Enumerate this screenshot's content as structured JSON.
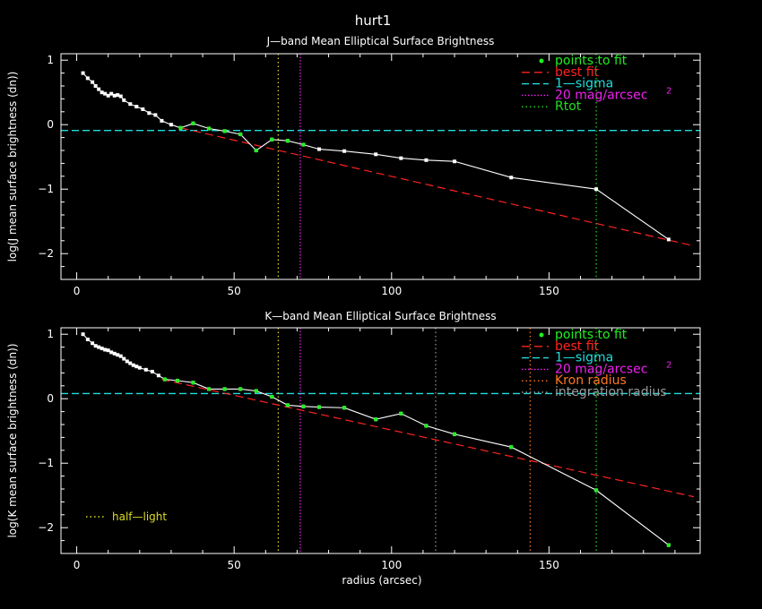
{
  "figure": {
    "title": "hurt1",
    "xlabel": "radius (arcsec)"
  },
  "colors": {
    "background": "#000000",
    "axes": "#ffffff",
    "data_line": "#ffffff",
    "fit_points": "#22ee22",
    "best_fit": "#ff2222",
    "one_sigma": "#22dddd",
    "mag20": "#ee22ee",
    "rtot": "#22dd22",
    "kron": "#ff7722",
    "integration": "#999999",
    "half_light": "#dddd22"
  },
  "chart_data": [
    {
      "type": "line",
      "panel": "J",
      "title": "J—band Mean Elliptical Surface Brightness",
      "xlabel": "",
      "ylabel": "log(J mean surface brightness (dn))",
      "xlim": [
        -5,
        198
      ],
      "ylim": [
        -2.4,
        1.1
      ],
      "xticks": [
        0,
        50,
        100,
        150
      ],
      "yticks": [
        1,
        0,
        -1,
        -2
      ],
      "profile": {
        "x": [
          2,
          3.5,
          5,
          6,
          7,
          8,
          9,
          10,
          11,
          12,
          13,
          14,
          15,
          17,
          19,
          21,
          23,
          25,
          27,
          30,
          33,
          37,
          42,
          47,
          52,
          57,
          62,
          67,
          72,
          77,
          85,
          95,
          103,
          111,
          120,
          138,
          165,
          188
        ],
        "y": [
          0.8,
          0.72,
          0.66,
          0.6,
          0.55,
          0.5,
          0.48,
          0.45,
          0.48,
          0.45,
          0.46,
          0.44,
          0.38,
          0.32,
          0.28,
          0.24,
          0.18,
          0.15,
          0.06,
          0.0,
          -0.05,
          0.02,
          -0.06,
          -0.1,
          -0.15,
          -0.4,
          -0.23,
          -0.25,
          -0.31,
          -0.38,
          -0.41,
          -0.46,
          -0.52,
          -0.55,
          -0.57,
          -0.82,
          -1.0,
          -1.78
        ]
      },
      "fit_points": {
        "x": [
          33,
          37,
          42,
          47,
          52,
          57,
          62,
          67,
          72
        ],
        "y": [
          -0.05,
          0.02,
          -0.06,
          -0.1,
          -0.15,
          -0.4,
          -0.23,
          -0.25,
          -0.31
        ]
      },
      "best_fit": {
        "x": [
          33,
          196
        ],
        "y": [
          -0.05,
          -1.88
        ]
      },
      "one_sigma": -0.09,
      "mag20_radius": 71,
      "rtot_radius": 165,
      "half_light_radius": 64,
      "legend": [
        "points to fit",
        "best fit",
        "1—sigma",
        "20 mag/arcsec",
        "Rtot"
      ],
      "legend_superscript": "2"
    },
    {
      "type": "line",
      "panel": "K",
      "title": "K—band Mean Elliptical Surface Brightness",
      "xlabel": "radius (arcsec)",
      "ylabel": "log(K mean surface brightness (dn))",
      "xlim": [
        -5,
        198
      ],
      "ylim": [
        -2.4,
        1.1
      ],
      "xticks": [
        0,
        50,
        100,
        150
      ],
      "yticks": [
        1,
        0,
        -1,
        -2
      ],
      "profile": {
        "x": [
          2,
          3.5,
          5,
          6,
          7,
          8,
          9,
          10,
          11,
          12,
          13,
          14,
          15,
          16,
          17,
          18,
          19,
          20,
          22,
          24,
          26,
          28,
          32,
          37,
          42,
          47,
          52,
          57,
          62,
          67,
          72,
          77,
          85,
          95,
          103,
          111,
          120,
          138,
          165,
          188
        ],
        "y": [
          1.0,
          0.92,
          0.86,
          0.82,
          0.8,
          0.78,
          0.76,
          0.75,
          0.72,
          0.7,
          0.68,
          0.66,
          0.62,
          0.58,
          0.55,
          0.52,
          0.5,
          0.48,
          0.45,
          0.42,
          0.36,
          0.3,
          0.28,
          0.25,
          0.15,
          0.15,
          0.15,
          0.12,
          0.03,
          -0.1,
          -0.12,
          -0.13,
          -0.14,
          -0.32,
          -0.23,
          -0.42,
          -0.55,
          -0.75,
          -1.42,
          -2.27
        ]
      },
      "fit_points": {
        "x": [
          28,
          32,
          37,
          42,
          47,
          52,
          57,
          62,
          67,
          72,
          77,
          85,
          95,
          103,
          111,
          120,
          138,
          165,
          188
        ],
        "y": [
          0.3,
          0.28,
          0.25,
          0.15,
          0.15,
          0.15,
          0.12,
          0.03,
          -0.1,
          -0.12,
          -0.13,
          -0.14,
          -0.32,
          -0.23,
          -0.42,
          -0.55,
          -0.75,
          -1.42,
          -2.27
        ]
      },
      "best_fit": {
        "x": [
          27,
          196
        ],
        "y": [
          0.3,
          -1.52
        ]
      },
      "one_sigma": 0.08,
      "mag20_radius": 71,
      "rtot_radius": 165,
      "kron_radius": 144,
      "integration_radius": 114,
      "half_light_radius": 64,
      "legend": [
        "points to fit",
        "best fit",
        "1—sigma",
        "20 mag/arcsec",
        "Kron radius",
        "integration radius"
      ],
      "legend_superscript": "2",
      "annotation": "half—light"
    }
  ]
}
